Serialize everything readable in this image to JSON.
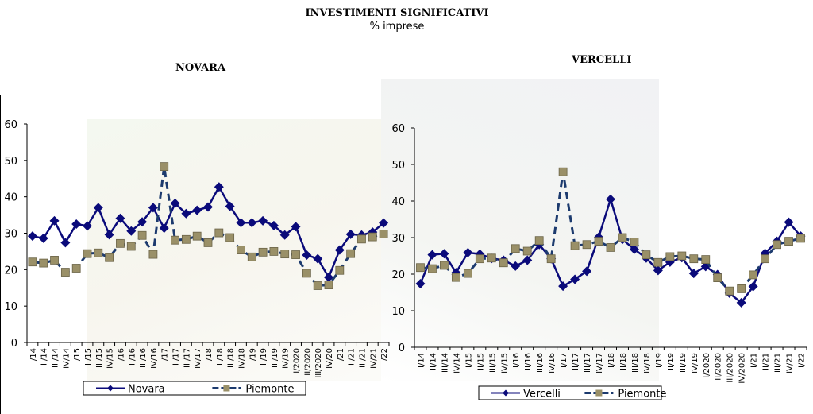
{
  "header": {
    "title": "INVESTIMENTI SIGNIFICATIVI",
    "subtitle": "% imprese"
  },
  "colors": {
    "primary": "#0a0a7a",
    "piemonte_line": "#1c3a6e",
    "piemonte_marker": "#9a9068"
  },
  "chart_data": [
    {
      "type": "line",
      "title": "NOVARA",
      "ylim": [
        0,
        60
      ],
      "yticks": [
        0,
        10,
        20,
        30,
        40,
        50,
        60
      ],
      "categories": [
        "I/14",
        "II/14",
        "III/14",
        "IV/14",
        "I/15",
        "II/15",
        "III/15",
        "IV/15",
        "I/16",
        "II/16",
        "III/16",
        "IV/16",
        "I/17",
        "II/17",
        "III/17",
        "IV/17",
        "I/18",
        "II/18",
        "III/18",
        "IV/18",
        "I/19",
        "II/19",
        "III/19",
        "IV/19",
        "I/2020",
        "II/2020",
        "III/2020",
        "IV/20",
        "I/21",
        "II/21",
        "III/21",
        "IV/21",
        "I/22"
      ],
      "legend_position": "bottom",
      "series": [
        {
          "name": "Novara",
          "values": [
            29.2,
            28.6,
            33.4,
            27.4,
            32.5,
            32.0,
            37.0,
            29.6,
            34.1,
            30.6,
            33.1,
            37.0,
            31.4,
            38.2,
            35.4,
            36.3,
            37.2,
            42.7,
            37.4,
            32.9,
            32.9,
            33.4,
            32.1,
            29.5,
            31.8,
            24.0,
            23.0,
            17.9,
            25.4,
            29.7,
            29.5,
            30.3,
            32.8
          ]
        },
        {
          "name": "Piemonte",
          "values": [
            22.1,
            21.8,
            22.6,
            19.3,
            20.4,
            24.4,
            24.6,
            23.3,
            27.2,
            26.4,
            29.4,
            24.2,
            48.3,
            28.1,
            28.3,
            29.2,
            27.4,
            30.1,
            28.8,
            25.4,
            23.5,
            24.8,
            25.0,
            24.3,
            24.1,
            19.0,
            15.6,
            15.8,
            19.8,
            24.4,
            28.4,
            29.0,
            29.8
          ]
        }
      ]
    },
    {
      "type": "line",
      "title": "VERCELLI",
      "ylim": [
        0,
        60
      ],
      "yticks": [
        0,
        10,
        20,
        30,
        40,
        50,
        60
      ],
      "categories": [
        "I/14",
        "II/14",
        "III/14",
        "IV/14",
        "I/15",
        "II/15",
        "III/15",
        "IV/15",
        "I/16",
        "II/16",
        "III/16",
        "IV/16",
        "I/17",
        "II/17",
        "III/17",
        "IV/17",
        "I/18",
        "II/18",
        "III/18",
        "IV/18",
        "I/19",
        "II/19",
        "III/19",
        "IV/19",
        "I/2020",
        "II/2020",
        "III/2020",
        "IV/2020",
        "I/21",
        "II/21",
        "III/21",
        "IV/21",
        "I/22"
      ],
      "legend_position": "bottom",
      "series": [
        {
          "name": "Vercelli",
          "values": [
            17.4,
            25.3,
            25.6,
            20.4,
            25.9,
            25.5,
            24.3,
            23.8,
            22.2,
            23.8,
            28.1,
            24.2,
            16.7,
            18.6,
            20.8,
            30.1,
            40.5,
            29.5,
            26.8,
            24.4,
            21.0,
            23.3,
            24.5,
            20.2,
            22.1,
            19.9,
            14.8,
            12.2,
            16.6,
            25.7,
            29.0,
            34.2,
            30.4
          ]
        },
        {
          "name": "Piemonte",
          "values": [
            21.8,
            21.5,
            22.4,
            19.1,
            20.2,
            24.2,
            24.4,
            23.1,
            27.0,
            26.3,
            29.2,
            24.2,
            48.0,
            27.8,
            28.1,
            29.0,
            27.3,
            30.0,
            28.8,
            25.3,
            23.2,
            24.8,
            25.0,
            24.2,
            24.0,
            19.0,
            15.4,
            16.0,
            19.8,
            24.2,
            28.1,
            29.0,
            29.8
          ]
        }
      ]
    }
  ]
}
